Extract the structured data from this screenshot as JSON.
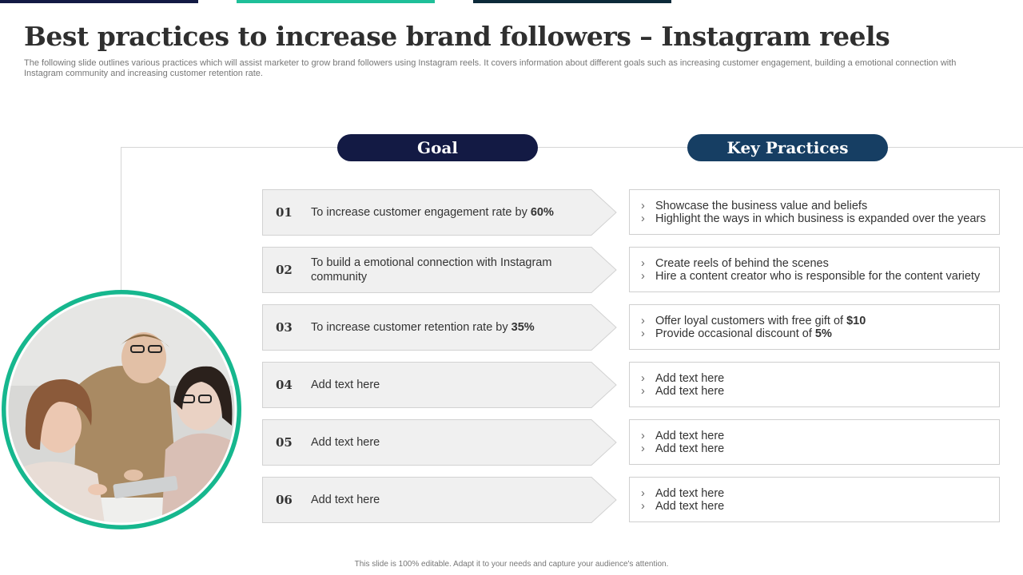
{
  "colors": {
    "navy": "#131a44",
    "teal": "#1fbf99",
    "dark_teal": "#0c2a3a",
    "key_practices_blue": "#163e63",
    "goal_fill": "#f0f0f0",
    "goal_border": "#d2d2d2",
    "photo_ring": "#16b78e"
  },
  "header": {
    "title": "Best practices to increase brand followers – Instagram reels",
    "subtitle": "The following slide outlines various practices which will assist marketer to grow brand followers using Instagram reels. It covers information about different goals such as increasing customer engagement, building a emotional connection with Instagram community and increasing customer retention rate."
  },
  "columns": {
    "goal_label": "Goal",
    "practices_label": "Key Practices"
  },
  "rows": [
    {
      "num": "01",
      "goal": [
        {
          "t": "To increase customer engagement rate by "
        },
        {
          "t": "60%",
          "b": true
        }
      ],
      "practices": [
        [
          {
            "t": "Showcase the business value and beliefs"
          }
        ],
        [
          {
            "t": "Highlight the ways in which business is expanded over the years"
          }
        ]
      ]
    },
    {
      "num": "02",
      "goal": [
        {
          "t": "To build a emotional connection with Instagram community"
        }
      ],
      "practices": [
        [
          {
            "t": "Create reels of behind the scenes"
          }
        ],
        [
          {
            "t": "Hire a content creator who is responsible for the content variety"
          }
        ]
      ]
    },
    {
      "num": "03",
      "goal": [
        {
          "t": "To increase customer retention rate by "
        },
        {
          "t": "35%",
          "b": true
        }
      ],
      "practices": [
        [
          {
            "t": "Offer loyal customers with free gift of "
          },
          {
            "t": "$10",
            "b": true
          }
        ],
        [
          {
            "t": "Provide occasional discount of "
          },
          {
            "t": "5%",
            "b": true
          }
        ]
      ]
    },
    {
      "num": "04",
      "goal": [
        {
          "t": "Add text here"
        }
      ],
      "practices": [
        [
          {
            "t": "Add text here"
          }
        ],
        [
          {
            "t": "Add text here"
          }
        ]
      ]
    },
    {
      "num": "05",
      "goal": [
        {
          "t": "Add text here"
        }
      ],
      "practices": [
        [
          {
            "t": "Add text here"
          }
        ],
        [
          {
            "t": "Add text here"
          }
        ]
      ]
    },
    {
      "num": "06",
      "goal": [
        {
          "t": "Add text here"
        }
      ],
      "practices": [
        [
          {
            "t": "Add text here"
          }
        ],
        [
          {
            "t": "Add text here"
          }
        ]
      ]
    }
  ],
  "bullet_glyph": "›",
  "footer": "This slide is 100% editable. Adapt it to your needs and capture your audience's attention."
}
